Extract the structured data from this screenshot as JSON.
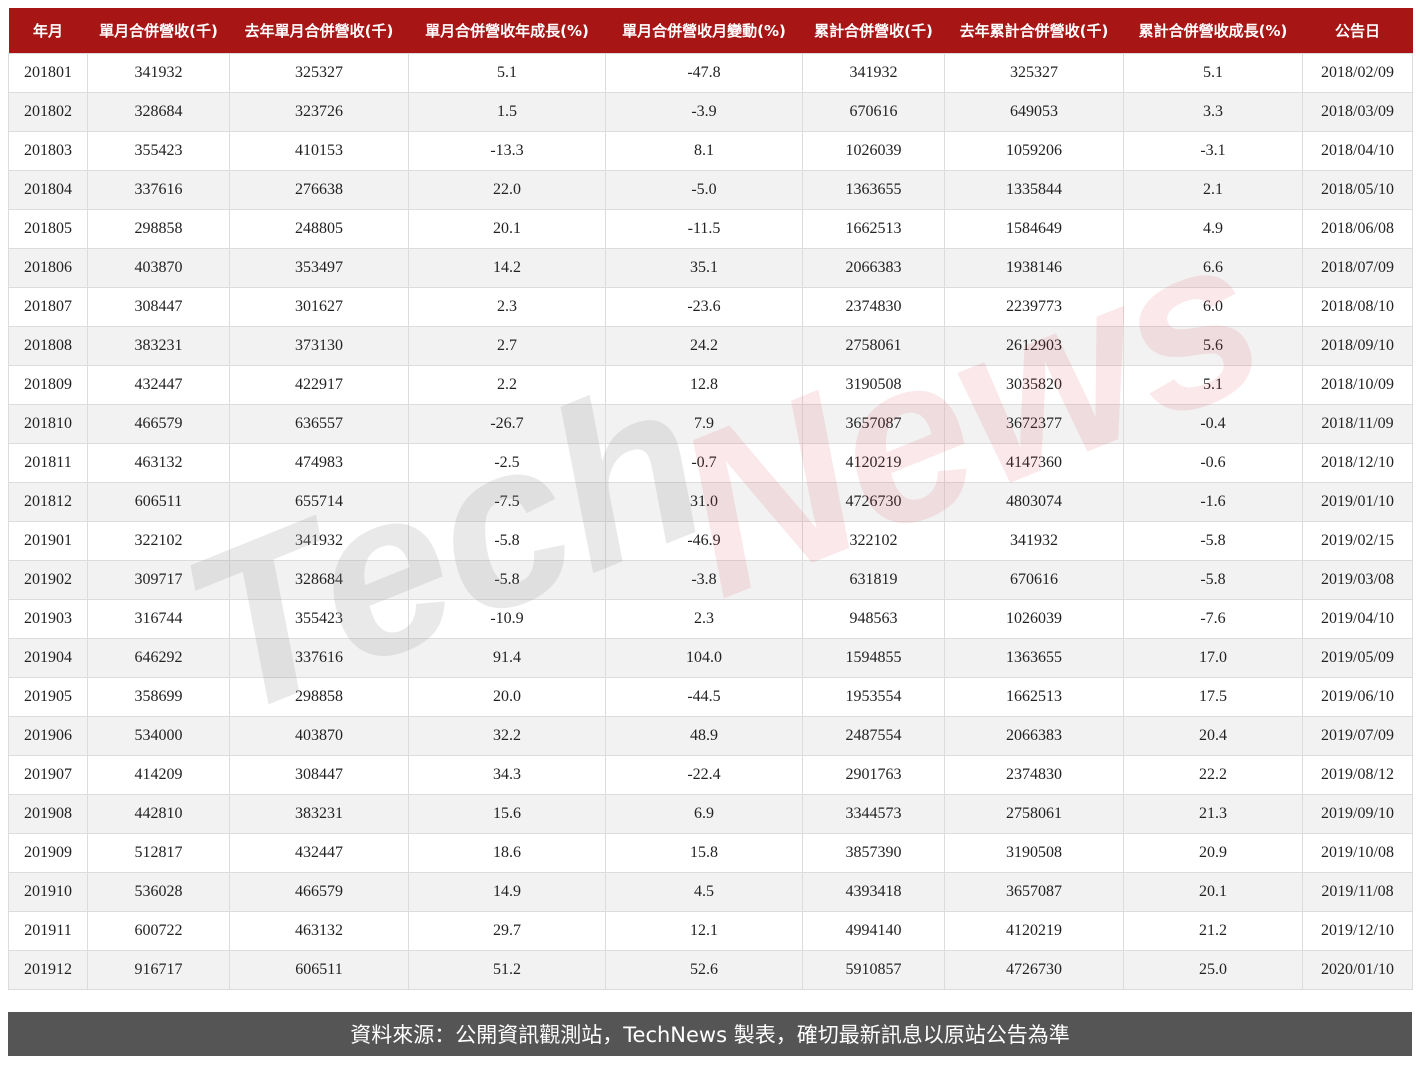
{
  "headers": [
    "年月",
    "單月合併營收(千)",
    "去年單月合併營收(千)",
    "單月合併營收年成長(%)",
    "單月合併營收月變動(%)",
    "累計合併營收(千)",
    "去年累計合併營收(千)",
    "累計合併營收成長(%)",
    "公告日"
  ],
  "rows": [
    [
      "201801",
      "341932",
      "325327",
      "5.1",
      "-47.8",
      "341932",
      "325327",
      "5.1",
      "2018/02/09"
    ],
    [
      "201802",
      "328684",
      "323726",
      "1.5",
      "-3.9",
      "670616",
      "649053",
      "3.3",
      "2018/03/09"
    ],
    [
      "201803",
      "355423",
      "410153",
      "-13.3",
      "8.1",
      "1026039",
      "1059206",
      "-3.1",
      "2018/04/10"
    ],
    [
      "201804",
      "337616",
      "276638",
      "22.0",
      "-5.0",
      "1363655",
      "1335844",
      "2.1",
      "2018/05/10"
    ],
    [
      "201805",
      "298858",
      "248805",
      "20.1",
      "-11.5",
      "1662513",
      "1584649",
      "4.9",
      "2018/06/08"
    ],
    [
      "201806",
      "403870",
      "353497",
      "14.2",
      "35.1",
      "2066383",
      "1938146",
      "6.6",
      "2018/07/09"
    ],
    [
      "201807",
      "308447",
      "301627",
      "2.3",
      "-23.6",
      "2374830",
      "2239773",
      "6.0",
      "2018/08/10"
    ],
    [
      "201808",
      "383231",
      "373130",
      "2.7",
      "24.2",
      "2758061",
      "2612903",
      "5.6",
      "2018/09/10"
    ],
    [
      "201809",
      "432447",
      "422917",
      "2.2",
      "12.8",
      "3190508",
      "3035820",
      "5.1",
      "2018/10/09"
    ],
    [
      "201810",
      "466579",
      "636557",
      "-26.7",
      "7.9",
      "3657087",
      "3672377",
      "-0.4",
      "2018/11/09"
    ],
    [
      "201811",
      "463132",
      "474983",
      "-2.5",
      "-0.7",
      "4120219",
      "4147360",
      "-0.6",
      "2018/12/10"
    ],
    [
      "201812",
      "606511",
      "655714",
      "-7.5",
      "31.0",
      "4726730",
      "4803074",
      "-1.6",
      "2019/01/10"
    ],
    [
      "201901",
      "322102",
      "341932",
      "-5.8",
      "-46.9",
      "322102",
      "341932",
      "-5.8",
      "2019/02/15"
    ],
    [
      "201902",
      "309717",
      "328684",
      "-5.8",
      "-3.8",
      "631819",
      "670616",
      "-5.8",
      "2019/03/08"
    ],
    [
      "201903",
      "316744",
      "355423",
      "-10.9",
      "2.3",
      "948563",
      "1026039",
      "-7.6",
      "2019/04/10"
    ],
    [
      "201904",
      "646292",
      "337616",
      "91.4",
      "104.0",
      "1594855",
      "1363655",
      "17.0",
      "2019/05/09"
    ],
    [
      "201905",
      "358699",
      "298858",
      "20.0",
      "-44.5",
      "1953554",
      "1662513",
      "17.5",
      "2019/06/10"
    ],
    [
      "201906",
      "534000",
      "403870",
      "32.2",
      "48.9",
      "2487554",
      "2066383",
      "20.4",
      "2019/07/09"
    ],
    [
      "201907",
      "414209",
      "308447",
      "34.3",
      "-22.4",
      "2901763",
      "2374830",
      "22.2",
      "2019/08/12"
    ],
    [
      "201908",
      "442810",
      "383231",
      "15.6",
      "6.9",
      "3344573",
      "2758061",
      "21.3",
      "2019/09/10"
    ],
    [
      "201909",
      "512817",
      "432447",
      "18.6",
      "15.8",
      "3857390",
      "3190508",
      "20.9",
      "2019/10/08"
    ],
    [
      "201910",
      "536028",
      "466579",
      "14.9",
      "4.5",
      "4393418",
      "3657087",
      "20.1",
      "2019/11/08"
    ],
    [
      "201911",
      "600722",
      "463132",
      "29.7",
      "12.1",
      "4994140",
      "4120219",
      "21.2",
      "2019/12/10"
    ],
    [
      "201912",
      "916717",
      "606511",
      "51.2",
      "52.6",
      "5910857",
      "4726730",
      "25.0",
      "2020/01/10"
    ]
  ],
  "watermark": {
    "part1": "Tech",
    "part2": "News"
  },
  "footer": "資料來源：公開資訊觀測站，TechNews 製表，確切最新訊息以原站公告為準",
  "colors": {
    "header": "#a81515",
    "footer": "#555555",
    "stripe": "#f2f2f2"
  }
}
